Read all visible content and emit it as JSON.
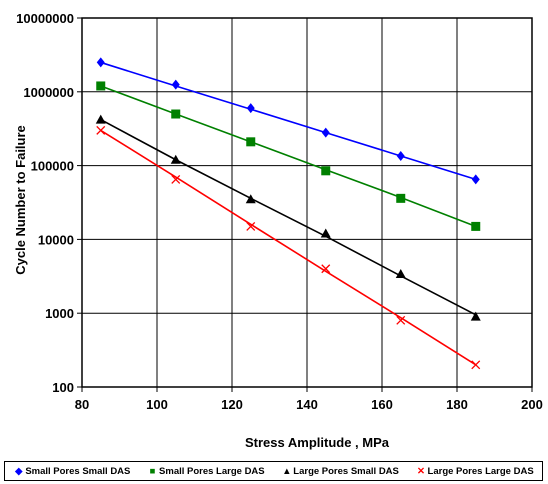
{
  "chart_data": {
    "type": "line",
    "xlabel": "Stress Amplitude , MPa",
    "ylabel": "Cycle Number to Failure",
    "xlim": [
      80,
      200
    ],
    "ylim": [
      100,
      10000000
    ],
    "y_scale": "log",
    "grid": true,
    "legend_position": "bottom",
    "x_ticks": [
      "80",
      "100",
      "120",
      "140",
      "160",
      "180",
      "200"
    ],
    "y_ticks": [
      "100",
      "1000",
      "10000",
      "100000",
      "1000000",
      "10000000"
    ],
    "x": [
      85,
      105,
      125,
      145,
      165,
      185
    ],
    "series": [
      {
        "name": "Small Pores Small DAS",
        "color": "#0000ff",
        "marker": "diamond",
        "points": [
          2500000,
          1250000,
          600000,
          280000,
          135000,
          65000
        ],
        "trend": [
          2500000,
          1200000,
          580000,
          280000,
          135000,
          65000
        ]
      },
      {
        "name": "Small Pores Large DAS",
        "color": "#008000",
        "marker": "square",
        "points": [
          1200000,
          500000,
          210000,
          85000,
          36000,
          15000
        ],
        "trend": [
          1200000,
          500000,
          210000,
          88000,
          37000,
          15000
        ]
      },
      {
        "name": "Large Pores Small DAS",
        "color": "#000000",
        "marker": "triangle",
        "points": [
          420000,
          120000,
          35000,
          12000,
          3400,
          900
        ],
        "trend": [
          420000,
          120000,
          36000,
          11000,
          3200,
          950
        ]
      },
      {
        "name": "Large Pores Large DAS",
        "color": "#ff0000",
        "marker": "x",
        "points": [
          300000,
          65000,
          15000,
          4000,
          800,
          200
        ],
        "trend": [
          300000,
          70000,
          16000,
          3700,
          870,
          200
        ]
      }
    ]
  }
}
